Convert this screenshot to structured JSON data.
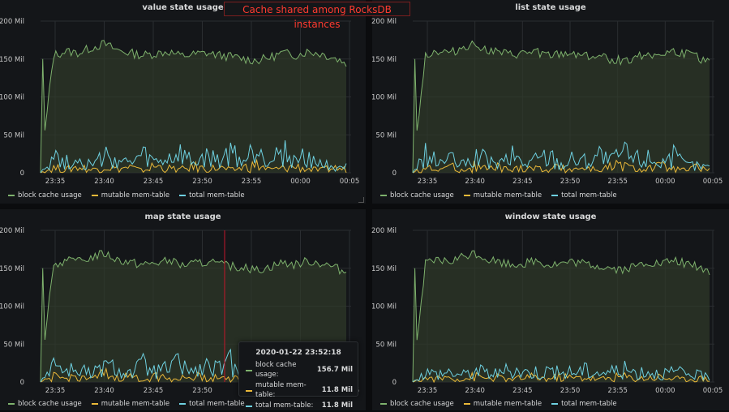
{
  "banner": "Cache shared among RocksDB instances",
  "colors": {
    "block_cache": "#7eb26d",
    "mutable": "#eab839",
    "total": "#6ed0e0",
    "grid": "#2a2d31",
    "fill": "#2f3a2a"
  },
  "legend": [
    "block cache usage",
    "mutable mem-table",
    "total mem-table"
  ],
  "tooltip": {
    "time": "2020-01-22 23:52:18",
    "rows": [
      {
        "label": "block cache usage:",
        "value": "156.7 Mil"
      },
      {
        "label": "mutable mem-table:",
        "value": "11.8 Mil"
      },
      {
        "label": "total mem-table:",
        "value": "11.8 Mil"
      }
    ]
  },
  "chart_data": [
    {
      "type": "line",
      "title": "value state usage",
      "x_ticks": [
        "23:35",
        "23:40",
        "23:45",
        "23:50",
        "23:55",
        "00:00",
        "00:05"
      ],
      "y_ticks": [
        "0",
        "50 Mil",
        "100 Mil",
        "150 Mil",
        "200 Mil"
      ],
      "ylim": [
        0,
        200
      ],
      "y_unit": "Mil",
      "series": [
        {
          "name": "block cache usage",
          "approx_values": [
            0,
            155,
            160,
            158,
            165,
            170,
            162,
            158,
            155,
            157,
            160,
            154,
            156,
            158,
            155,
            153,
            150,
            148,
            152,
            158,
            155,
            160,
            157,
            152,
            145
          ]
        },
        {
          "name": "mutable mem-table",
          "approx_values": [
            0,
            8,
            5,
            10,
            4,
            12,
            6,
            9,
            3,
            11,
            7,
            5,
            10,
            6,
            8,
            4,
            9,
            12,
            5,
            7,
            10,
            6,
            4,
            8,
            5
          ]
        },
        {
          "name": "total mem-table",
          "approx_values": [
            0,
            25,
            15,
            20,
            10,
            22,
            18,
            12,
            24,
            14,
            19,
            26,
            13,
            21,
            17,
            28,
            15,
            38,
            20,
            32,
            16,
            24,
            12,
            10,
            8
          ]
        }
      ],
      "legend_position": "bottom-left",
      "grid": true
    },
    {
      "type": "line",
      "title": "list state usage",
      "x_ticks": [
        "23:35",
        "23:40",
        "23:45",
        "23:50",
        "23:55",
        "00:00",
        "00:05"
      ],
      "y_ticks": [
        "0",
        "50 Mil",
        "100 Mil",
        "150 Mil",
        "200 Mil"
      ],
      "ylim": [
        0,
        200
      ],
      "y_unit": "Mil",
      "series": [
        {
          "name": "block cache usage",
          "approx_values": [
            0,
            155,
            160,
            158,
            165,
            170,
            162,
            158,
            155,
            157,
            160,
            154,
            156,
            158,
            155,
            153,
            150,
            148,
            152,
            158,
            155,
            160,
            157,
            152,
            145
          ]
        },
        {
          "name": "mutable mem-table",
          "approx_values": [
            0,
            8,
            5,
            10,
            4,
            12,
            6,
            9,
            3,
            11,
            7,
            5,
            10,
            6,
            8,
            4,
            9,
            12,
            5,
            7,
            10,
            6,
            4,
            8,
            5
          ]
        },
        {
          "name": "total mem-table",
          "approx_values": [
            0,
            25,
            15,
            20,
            10,
            22,
            18,
            12,
            24,
            14,
            19,
            26,
            13,
            21,
            17,
            28,
            15,
            30,
            20,
            22,
            16,
            24,
            12,
            10,
            8
          ]
        }
      ],
      "legend_position": "bottom-left",
      "grid": true
    },
    {
      "type": "line",
      "title": "map state usage",
      "x_ticks": [
        "23:35",
        "23:40",
        "23:45",
        "23:50",
        "23:55",
        "00:00",
        "00:05"
      ],
      "y_ticks": [
        "0",
        "50 Mil",
        "100 Mil",
        "150 Mil",
        "200 Mil"
      ],
      "ylim": [
        0,
        200
      ],
      "y_unit": "Mil",
      "series": [
        {
          "name": "block cache usage",
          "approx_values": [
            0,
            155,
            160,
            158,
            165,
            170,
            162,
            158,
            155,
            157,
            160,
            154,
            156,
            158,
            155,
            153,
            150,
            148,
            152,
            158,
            155,
            160,
            157,
            152,
            145
          ]
        },
        {
          "name": "mutable mem-table",
          "approx_values": [
            0,
            8,
            5,
            10,
            4,
            12,
            6,
            9,
            3,
            11,
            7,
            5,
            10,
            6,
            8,
            4,
            9,
            12,
            5,
            7,
            10,
            6,
            4,
            8,
            5
          ]
        },
        {
          "name": "total mem-table",
          "approx_values": [
            0,
            30,
            15,
            20,
            10,
            22,
            18,
            12,
            24,
            14,
            19,
            26,
            13,
            21,
            17,
            28,
            15,
            24,
            20,
            22,
            16,
            24,
            12,
            10,
            8
          ]
        }
      ],
      "legend_position": "bottom-left",
      "grid": true
    },
    {
      "type": "line",
      "title": "window state usage",
      "x_ticks": [
        "23:35",
        "23:40",
        "23:45",
        "23:50",
        "23:55",
        "00:00",
        "00:05"
      ],
      "y_ticks": [
        "0",
        "50 Mil",
        "100 Mil",
        "150 Mil",
        "200 Mil"
      ],
      "ylim": [
        0,
        200
      ],
      "y_unit": "Mil",
      "series": [
        {
          "name": "block cache usage",
          "approx_values": [
            0,
            155,
            160,
            158,
            165,
            170,
            162,
            158,
            155,
            157,
            160,
            154,
            156,
            158,
            155,
            153,
            150,
            148,
            152,
            158,
            155,
            160,
            157,
            152,
            145
          ]
        },
        {
          "name": "mutable mem-table",
          "approx_values": [
            0,
            6,
            5,
            8,
            4,
            9,
            6,
            7,
            3,
            8,
            7,
            5,
            9,
            6,
            8,
            4,
            7,
            9,
            5,
            7,
            8,
            6,
            4,
            6,
            5
          ]
        },
        {
          "name": "total mem-table",
          "approx_values": [
            0,
            14,
            12,
            15,
            10,
            16,
            14,
            12,
            18,
            14,
            15,
            16,
            13,
            15,
            17,
            14,
            15,
            18,
            14,
            16,
            12,
            14,
            12,
            10,
            8
          ]
        }
      ],
      "legend_position": "bottom-left",
      "grid": true
    }
  ]
}
